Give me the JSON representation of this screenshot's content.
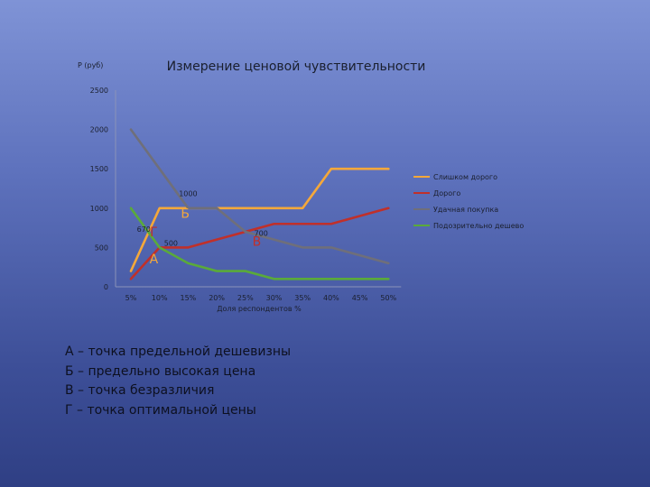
{
  "chart_data": {
    "type": "line",
    "title": "Измерение ценовой чувствительности",
    "ylabel": "Р (руб)",
    "xlabel": "Доля респондентов %",
    "ylim": [
      0,
      2500
    ],
    "y_ticks": [
      0,
      500,
      1000,
      1500,
      2000,
      2500
    ],
    "y_tick_labels": [
      "0",
      "500",
      "1000",
      "1500",
      "2000",
      "2500"
    ],
    "categories": [
      "5%",
      "10%",
      "15%",
      "20%",
      "25%",
      "30%",
      "35%",
      "40%",
      "45%",
      "50%"
    ],
    "grid": false,
    "legend_position": "right",
    "series": [
      {
        "name": "Слишком дорого",
        "color": "#f5a83a",
        "values": [
          200,
          1000,
          1000,
          1000,
          1000,
          1000,
          1000,
          1500,
          1500,
          1500
        ]
      },
      {
        "name": "Дорого",
        "color": "#c0302a",
        "values": [
          100,
          500,
          500,
          600,
          700,
          800,
          800,
          800,
          900,
          1000
        ]
      },
      {
        "name": "Удачная покупка",
        "color": "#6f6f7a",
        "values": [
          2000,
          1500,
          1000,
          1000,
          700,
          600,
          500,
          500,
          400,
          300
        ]
      },
      {
        "name": "Подозрительно дешево",
        "color": "#5aaa3a",
        "values": [
          1000,
          500,
          300,
          200,
          200,
          100,
          100,
          100,
          100,
          100
        ]
      }
    ],
    "annotations": [
      {
        "text": "1000",
        "x": 2.0,
        "y": 1150,
        "kind": "value"
      },
      {
        "text": "670",
        "x": 0.45,
        "y": 700,
        "kind": "value"
      },
      {
        "text": "500",
        "x": 1.4,
        "y": 520,
        "kind": "value"
      },
      {
        "text": "700",
        "x": 4.55,
        "y": 650,
        "kind": "value"
      },
      {
        "text": "Г",
        "x": 0.8,
        "y": 640,
        "kind": "letter",
        "color": "#c0302a"
      },
      {
        "text": "А",
        "x": 0.8,
        "y": 300,
        "kind": "letter",
        "color": "#f5a83a"
      },
      {
        "text": "Б",
        "x": 1.9,
        "y": 880,
        "kind": "letter",
        "color": "#f5a83a"
      },
      {
        "text": "В",
        "x": 4.4,
        "y": 520,
        "kind": "letter",
        "color": "#c0302a"
      }
    ]
  },
  "notes": [
    "А – точка предельной дешевизны",
    "Б – предельно высокая цена",
    "В – точка безразличия",
    "Г – точка оптимальной цены"
  ]
}
